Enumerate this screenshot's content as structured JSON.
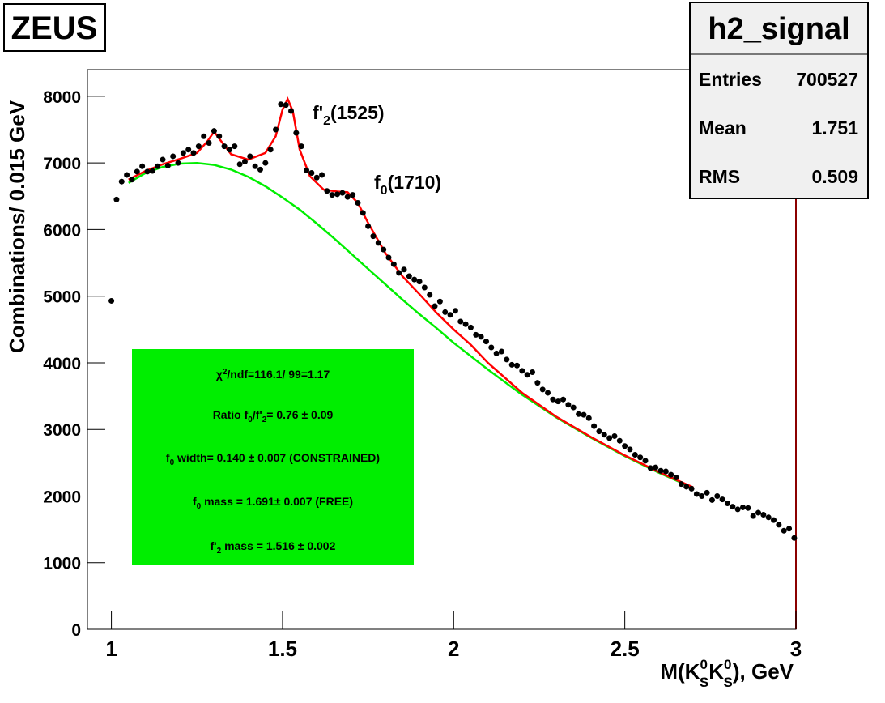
{
  "chart_data": {
    "type": "scatter",
    "experiment": "ZEUS",
    "stats": {
      "title": "h2_signal",
      "rows": [
        [
          "Entries",
          "700527"
        ],
        [
          "Mean",
          "1.751"
        ],
        [
          "RMS",
          "0.509"
        ]
      ]
    },
    "x_label": [
      "M(K",
      "0",
      "S",
      "K",
      "0",
      "S",
      "), GeV"
    ],
    "y_label": "Combinations/ 0.015 GeV",
    "peak_labels": [
      [
        "f'",
        "2",
        "(1525)"
      ],
      [
        "f",
        "0",
        "(1710)"
      ]
    ],
    "fit_box": {
      "color": "#00ee00",
      "lines": [
        [
          "χ",
          "2",
          "/ndf=116.1/ 99=1.17"
        ],
        [
          "Ratio f",
          "0",
          "/f'",
          "2",
          "= 0.76 ± 0.09"
        ],
        [
          "f",
          "0",
          " width= 0.140 ± 0.007 (CONSTRAINED)"
        ],
        [
          "f",
          "0",
          " mass = 1.691± 0.007 (FREE)"
        ],
        [
          "f'",
          "2",
          " mass = 1.516 ± 0.002"
        ]
      ]
    },
    "xlim": [
      0.93,
      3.0
    ],
    "ylim": [
      0,
      8400
    ],
    "xticks": [
      1,
      1.5,
      2,
      2.5,
      3
    ],
    "yticks": [
      0,
      1000,
      2000,
      3000,
      4000,
      5000,
      6000,
      7000,
      8000
    ],
    "color": "#000000",
    "x": [
      1.0,
      1.015,
      1.03,
      1.045,
      1.06,
      1.075,
      1.09,
      1.105,
      1.12,
      1.135,
      1.15,
      1.165,
      1.18,
      1.195,
      1.21,
      1.225,
      1.24,
      1.255,
      1.27,
      1.285,
      1.3,
      1.315,
      1.33,
      1.345,
      1.36,
      1.375,
      1.39,
      1.405,
      1.42,
      1.435,
      1.45,
      1.465,
      1.48,
      1.495,
      1.51,
      1.525,
      1.54,
      1.555,
      1.57,
      1.585,
      1.6,
      1.615,
      1.63,
      1.645,
      1.66,
      1.675,
      1.69,
      1.705,
      1.72,
      1.735,
      1.75,
      1.765,
      1.78,
      1.795,
      1.81,
      1.825,
      1.84,
      1.855,
      1.87,
      1.885,
      1.9,
      1.915,
      1.93,
      1.945,
      1.96,
      1.975,
      1.99,
      2.005,
      2.02,
      2.035,
      2.05,
      2.065,
      2.08,
      2.095,
      2.11,
      2.125,
      2.14,
      2.155,
      2.17,
      2.185,
      2.2,
      2.215,
      2.23,
      2.245,
      2.26,
      2.275,
      2.29,
      2.305,
      2.32,
      2.335,
      2.35,
      2.365,
      2.38,
      2.395,
      2.41,
      2.425,
      2.44,
      2.455,
      2.47,
      2.485,
      2.5,
      2.515,
      2.53,
      2.545,
      2.56,
      2.575,
      2.59,
      2.605,
      2.62,
      2.635,
      2.65,
      2.665,
      2.68,
      2.695,
      2.71,
      2.725,
      2.74,
      2.755,
      2.77,
      2.785,
      2.8,
      2.815,
      2.83,
      2.845,
      2.86,
      2.875,
      2.89,
      2.905,
      2.92,
      2.935,
      2.95,
      2.965,
      2.98,
      2.995
    ],
    "values": [
      4930,
      6450,
      6720,
      6820,
      6750,
      6870,
      6950,
      6870,
      6880,
      6950,
      7050,
      6960,
      7100,
      7000,
      7150,
      7200,
      7150,
      7250,
      7400,
      7300,
      7480,
      7400,
      7250,
      7200,
      7250,
      6980,
      7020,
      7100,
      6950,
      6900,
      7000,
      7200,
      7500,
      7880,
      7870,
      7780,
      7450,
      7250,
      6890,
      6850,
      6780,
      6820,
      6580,
      6520,
      6530,
      6550,
      6490,
      6520,
      6400,
      6250,
      6050,
      5900,
      5800,
      5700,
      5580,
      5480,
      5350,
      5400,
      5300,
      5250,
      5220,
      5130,
      5020,
      4850,
      4920,
      4760,
      4720,
      4780,
      4620,
      4580,
      4530,
      4420,
      4390,
      4320,
      4230,
      4140,
      4170,
      4050,
      3970,
      3960,
      3880,
      3820,
      3860,
      3700,
      3600,
      3550,
      3450,
      3420,
      3450,
      3370,
      3330,
      3230,
      3220,
      3170,
      3050,
      2970,
      2920,
      2870,
      2900,
      2830,
      2750,
      2700,
      2620,
      2580,
      2530,
      2420,
      2430,
      2380,
      2370,
      2320,
      2280,
      2180,
      2140,
      2110,
      2030,
      2000,
      2050,
      1940,
      2000,
      1950,
      1890,
      1840,
      1800,
      1830,
      1820,
      1700,
      1750,
      1720,
      1680,
      1640,
      1570,
      1480,
      1510,
      1370
    ],
    "curves": [
      {
        "color": "#00ee00",
        "x": [
          1.05,
          1.1,
          1.15,
          1.2,
          1.25,
          1.3,
          1.35,
          1.4,
          1.45,
          1.5,
          1.55,
          1.6,
          1.65,
          1.7,
          1.75,
          1.8,
          1.85,
          1.9,
          1.95,
          2.0,
          2.1,
          2.2,
          2.3,
          2.4,
          2.5,
          2.6,
          2.7
        ],
        "values": [
          6700,
          6850,
          6940,
          6990,
          7000,
          6970,
          6900,
          6790,
          6650,
          6480,
          6300,
          6090,
          5870,
          5640,
          5410,
          5180,
          4950,
          4730,
          4520,
          4300,
          3900,
          3520,
          3180,
          2880,
          2600,
          2350,
          2120
        ]
      },
      {
        "color": "#ff0000",
        "x": [
          1.05,
          1.1,
          1.15,
          1.2,
          1.25,
          1.28,
          1.3,
          1.32,
          1.35,
          1.4,
          1.45,
          1.48,
          1.5,
          1.515,
          1.53,
          1.55,
          1.58,
          1.62,
          1.66,
          1.69,
          1.72,
          1.75,
          1.8,
          1.85,
          1.9,
          1.95,
          2.0,
          2.05,
          2.1,
          2.2,
          2.3,
          2.4,
          2.5,
          2.6,
          2.7
        ],
        "values": [
          6750,
          6880,
          6980,
          7060,
          7150,
          7320,
          7470,
          7330,
          7130,
          7050,
          7150,
          7400,
          7800,
          7960,
          7780,
          7200,
          6800,
          6600,
          6570,
          6560,
          6400,
          6100,
          5650,
          5300,
          5030,
          4750,
          4500,
          4270,
          4000,
          3550,
          3190,
          2890,
          2610,
          2360,
          2130
        ]
      }
    ]
  }
}
